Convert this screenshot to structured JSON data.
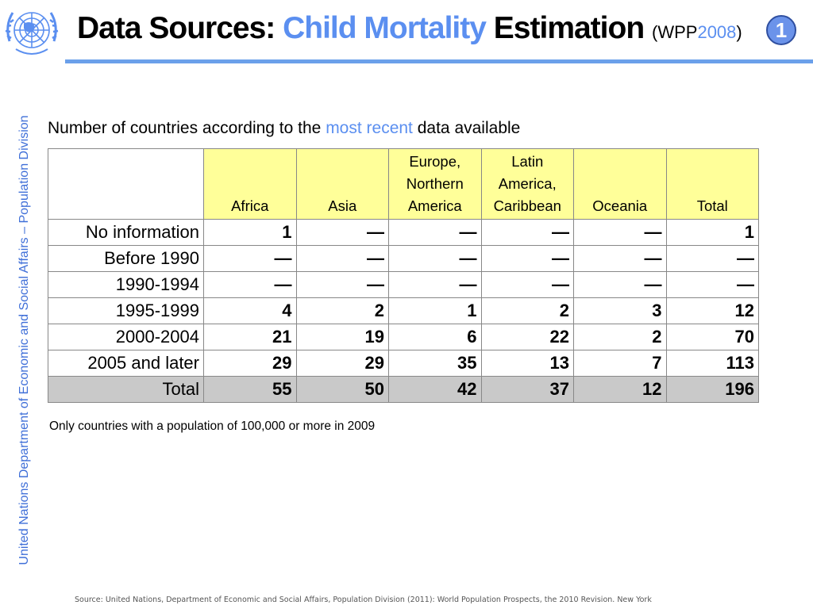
{
  "header": {
    "title_part1": "Data Sources: ",
    "title_accent": "Child Mortality",
    "title_part2": " Estimation ",
    "title_paren_open": "(",
    "title_wpp": "WPP",
    "title_year": "2008",
    "title_paren_close": ")",
    "badge_number": "1",
    "accent_color": "#5b8ff0"
  },
  "sidebar": {
    "text": "United Nations Department of Economic and Social Affairs – Population Division"
  },
  "main": {
    "subtitle_before": "Number of countries according to the ",
    "subtitle_highlight": "most recent",
    "subtitle_after": " data available",
    "table": {
      "columns": [
        "Africa",
        "Asia",
        "Europe, Northern America",
        "Latin America, Caribbean",
        "Oceania",
        "Total"
      ],
      "rows": [
        {
          "label": "No information",
          "values": [
            "1",
            "—",
            "—",
            "—",
            "—",
            "1"
          ]
        },
        {
          "label": "Before 1990",
          "values": [
            "—",
            "—",
            "—",
            "—",
            "—",
            "—"
          ]
        },
        {
          "label": "1990-1994",
          "values": [
            "—",
            "—",
            "—",
            "—",
            "—",
            "—"
          ]
        },
        {
          "label": "1995-1999",
          "values": [
            "4",
            "2",
            "1",
            "2",
            "3",
            "12"
          ]
        },
        {
          "label": "2000-2004",
          "values": [
            "21",
            "19",
            "6",
            "22",
            "2",
            "70"
          ]
        },
        {
          "label": "2005 and later",
          "values": [
            "29",
            "29",
            "35",
            "13",
            "7",
            "113"
          ]
        },
        {
          "label": "Total",
          "values": [
            "55",
            "50",
            "42",
            "37",
            "12",
            "196"
          ]
        }
      ]
    },
    "note": "Only countries with a population of 100,000 or more in 2009"
  },
  "footer": {
    "source": "Source: United Nations, Department of Economic and Social Affairs, Population Division (2011): World Population Prospects, the 2010 Revision. New York"
  },
  "icons": {
    "logo": "un-emblem-icon"
  }
}
